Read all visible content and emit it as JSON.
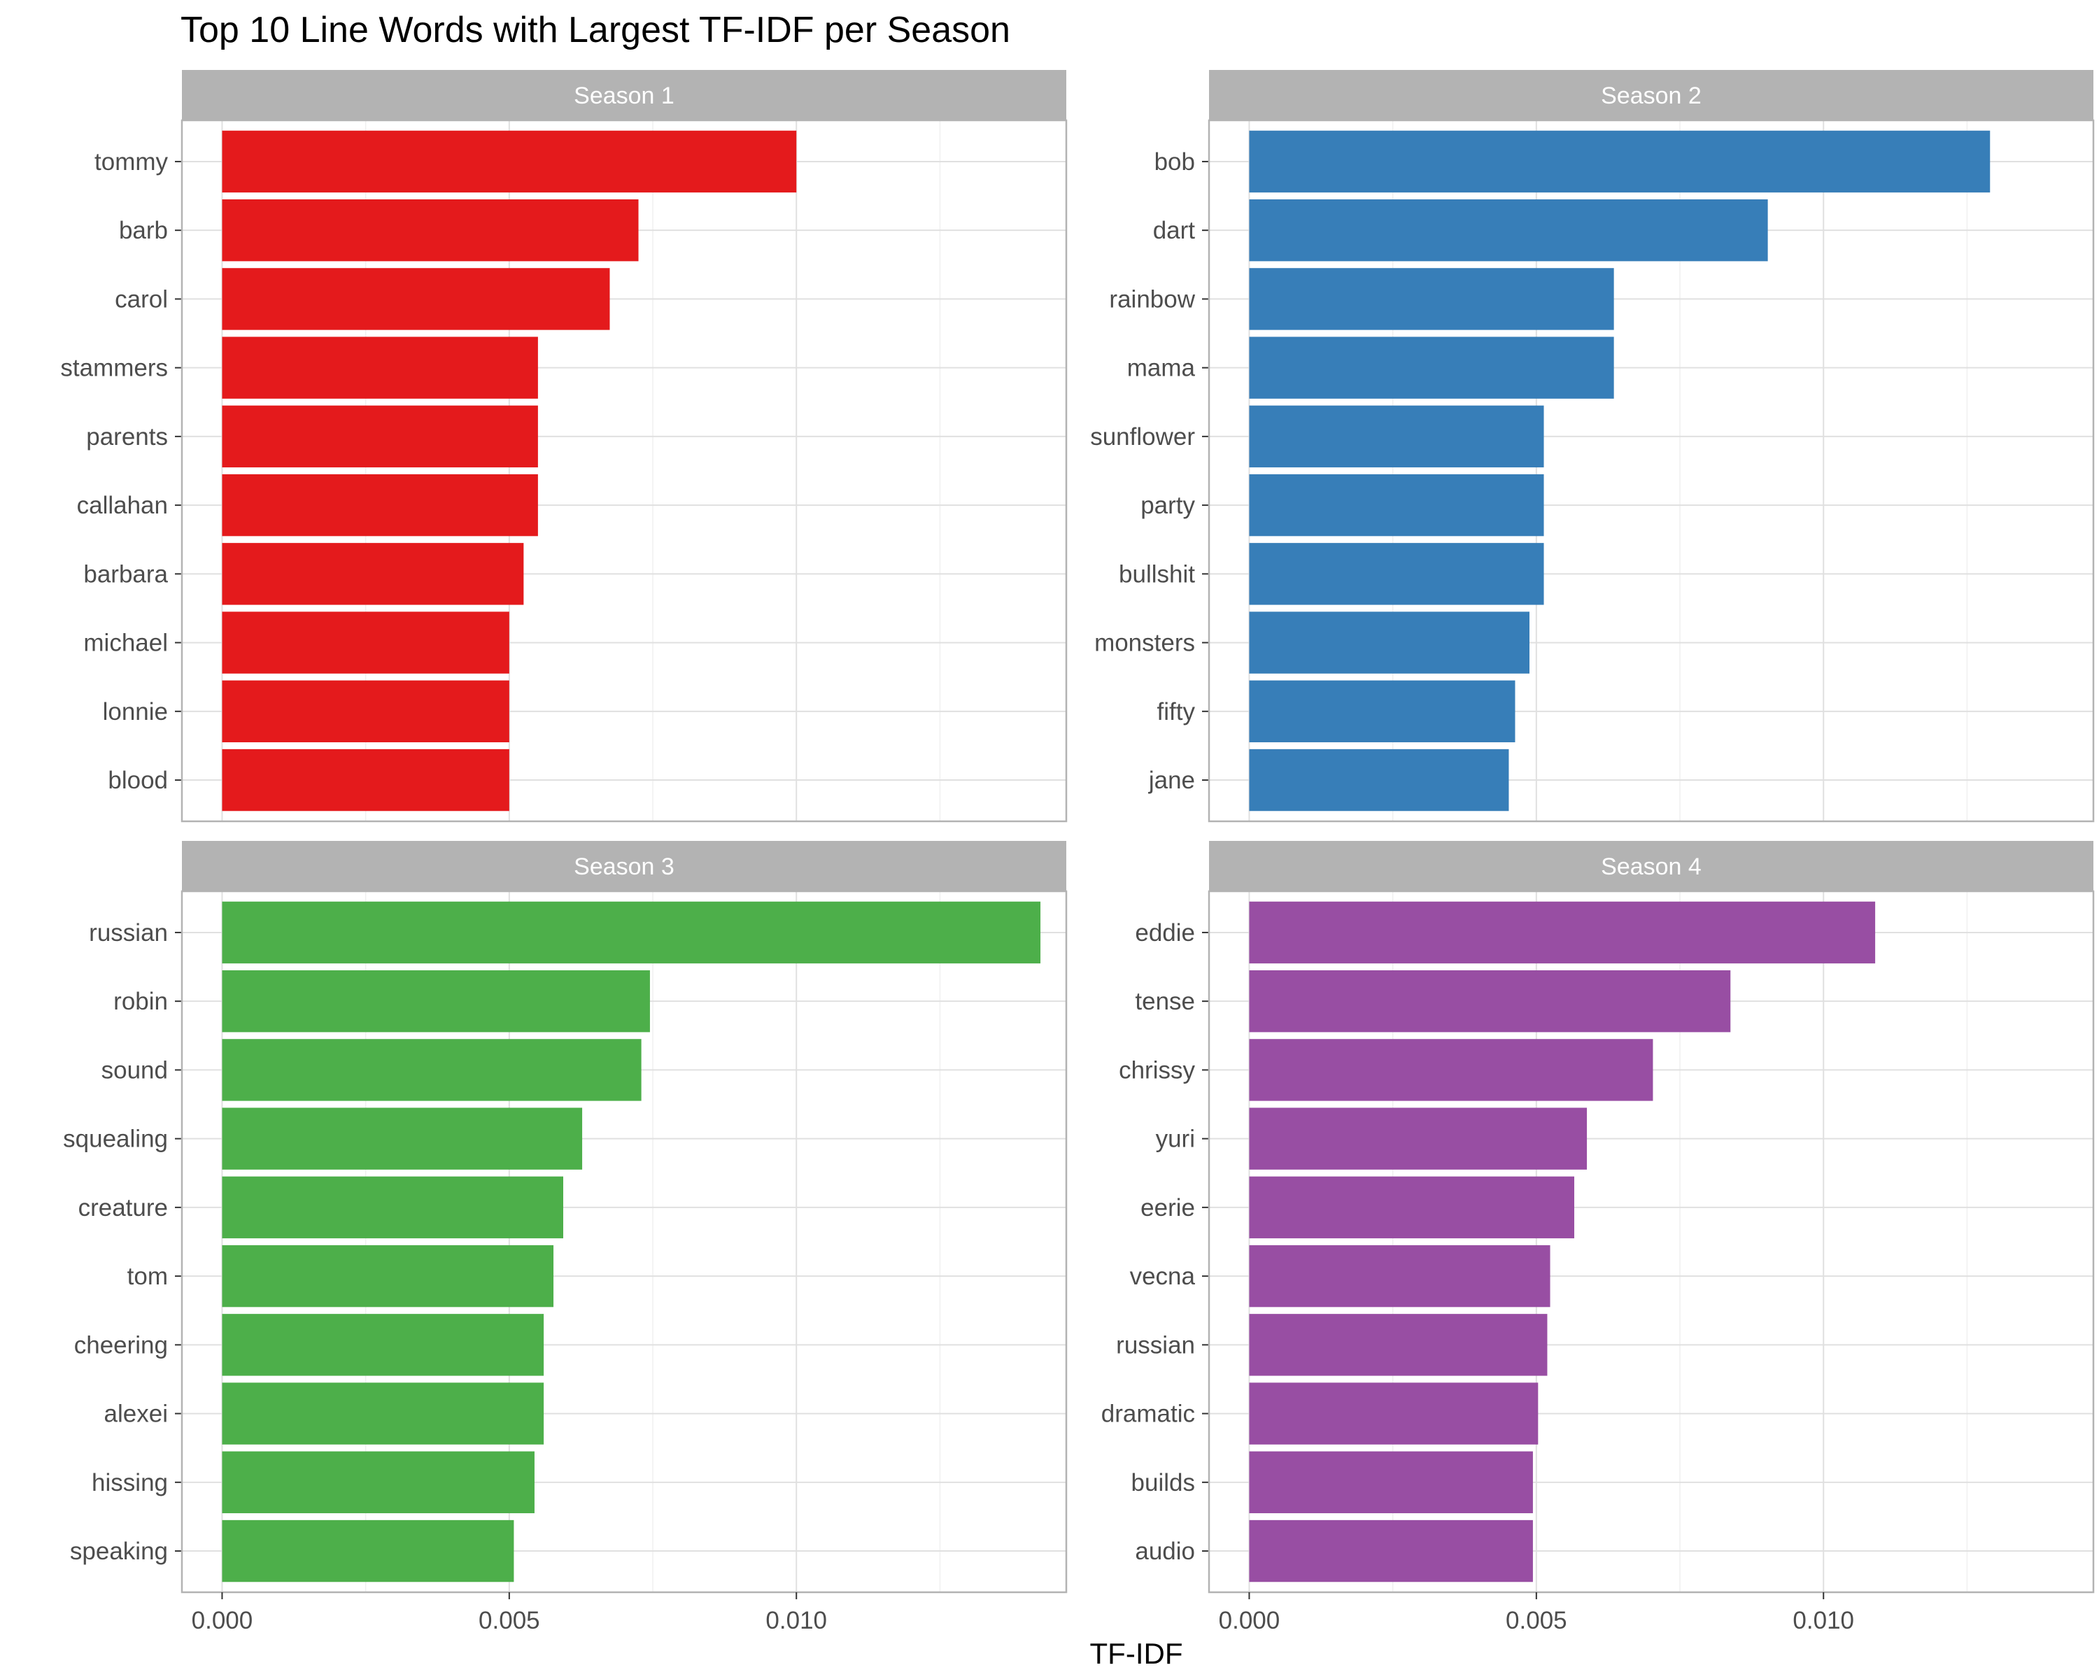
{
  "chart_data": {
    "type": "bar",
    "orientation": "horizontal",
    "title": "Top 10 Line Words with Largest TF-IDF per Season",
    "xlabel": "TF-IDF",
    "ylabel": "",
    "xlim": [
      -0.0007,
      0.0147
    ],
    "x_ticks": [
      "0.000",
      "0.005",
      "0.010"
    ],
    "x_tick_values": [
      0,
      0.005,
      0.01
    ],
    "grid": true,
    "legend": "none",
    "facets": [
      {
        "name": "Season 1",
        "color": "#e41a1c",
        "categories": [
          "tommy",
          "barb",
          "carol",
          "stammers",
          "parents",
          "callahan",
          "barbara",
          "michael",
          "lonnie",
          "blood"
        ],
        "values": [
          0.01,
          0.00725,
          0.00675,
          0.0055,
          0.0055,
          0.0055,
          0.00525,
          0.005,
          0.005,
          0.005
        ]
      },
      {
        "name": "Season 2",
        "color": "#377eb8",
        "categories": [
          "bob",
          "dart",
          "rainbow",
          "mama",
          "sunflower",
          "party",
          "bullshit",
          "monsters",
          "fifty",
          "jane"
        ],
        "values": [
          0.0129,
          0.00903,
          0.00635,
          0.00635,
          0.00513,
          0.00513,
          0.00513,
          0.00488,
          0.00463,
          0.00452
        ]
      },
      {
        "name": "Season 3",
        "color": "#4daf4a",
        "categories": [
          "russian",
          "robin",
          "sound",
          "squealing",
          "creature",
          "tom",
          "cheering",
          "alexei",
          "hissing",
          "speaking"
        ],
        "values": [
          0.01425,
          0.00745,
          0.0073,
          0.00627,
          0.00594,
          0.00577,
          0.0056,
          0.0056,
          0.00544,
          0.00508
        ]
      },
      {
        "name": "Season 4",
        "color": "#984ea3",
        "categories": [
          "eddie",
          "tense",
          "chrissy",
          "yuri",
          "eerie",
          "vecna",
          "russian",
          "dramatic",
          "builds",
          "audio"
        ],
        "values": [
          0.0109,
          0.00838,
          0.00703,
          0.00588,
          0.00566,
          0.00524,
          0.00519,
          0.00503,
          0.00494,
          0.00494
        ]
      }
    ]
  }
}
